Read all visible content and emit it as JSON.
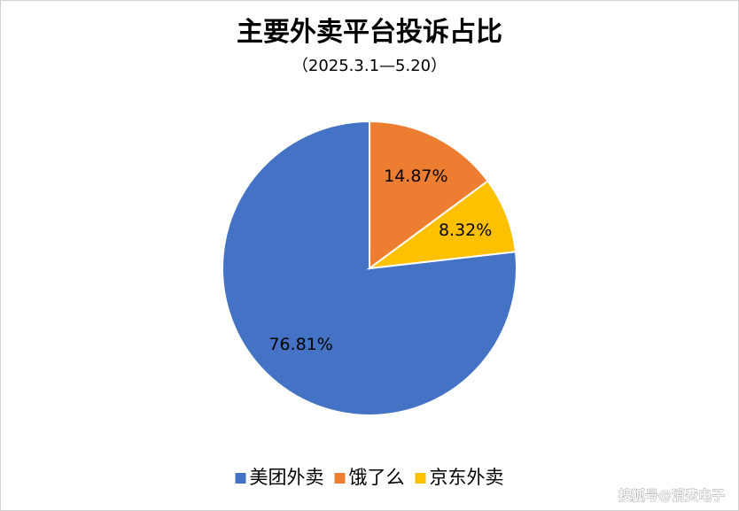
{
  "chart_data": {
    "type": "pie",
    "title": "主要外卖平台投诉占比",
    "subtitle": "（2025.3.1—5.20）",
    "categories": [
      "美团外卖",
      "饿了么",
      "京东外卖"
    ],
    "values": [
      76.81,
      14.87,
      8.32
    ],
    "value_labels": [
      "76.81%",
      "14.87%",
      "8.32%"
    ],
    "colors": [
      "#4472c4",
      "#ed7d31",
      "#ffc000"
    ],
    "legend": "bottom",
    "watermark": "搜狐号@消费电子"
  }
}
